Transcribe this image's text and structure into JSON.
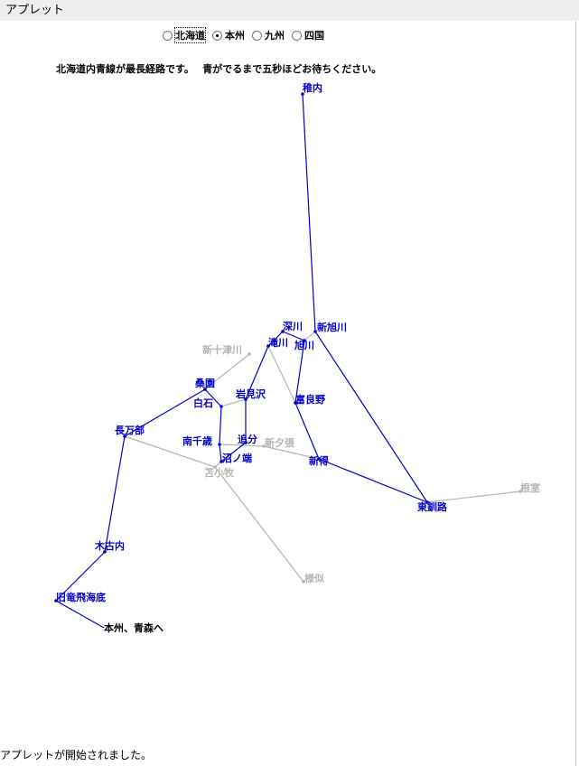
{
  "window": {
    "title": "アプレット"
  },
  "regions": [
    {
      "label": "北海道",
      "selected": false,
      "focused": true
    },
    {
      "label": "本州",
      "selected": true,
      "focused": false
    },
    {
      "label": "九州",
      "selected": false,
      "focused": false
    },
    {
      "label": "四国",
      "selected": false,
      "focused": false
    }
  ],
  "message": "北海道内青線が最長経路です。　 青がでるまで五秒ほどお待ちください。",
  "colors": {
    "route": "#0000cc",
    "other": "#b4b4b4",
    "terminal": "#000000"
  },
  "stations": {
    "wakkanai": {
      "name": "稚内",
      "onRoute": true
    },
    "shinasahikawa": {
      "name": "新旭川",
      "onRoute": true
    },
    "fukagawa": {
      "name": "深川",
      "onRoute": true
    },
    "asahikawa": {
      "name": "旭川",
      "onRoute": true
    },
    "takikawa": {
      "name": "滝川",
      "onRoute": true
    },
    "shintotsukawa": {
      "name": "新十津川",
      "onRoute": false
    },
    "soen": {
      "name": "桑園",
      "onRoute": true
    },
    "shiroishi": {
      "name": "白石",
      "onRoute": true
    },
    "iwamizawa": {
      "name": "岩見沢",
      "onRoute": true
    },
    "furano": {
      "name": "富良野",
      "onRoute": true
    },
    "minamichitose": {
      "name": "南千歳",
      "onRoute": true
    },
    "oiwake": {
      "name": "追分",
      "onRoute": true
    },
    "shinyubari": {
      "name": "新夕張",
      "onRoute": false
    },
    "numanohata": {
      "name": "沼ノ端",
      "onRoute": true
    },
    "tomakomai": {
      "name": "苫小牧",
      "onRoute": false
    },
    "shintoku": {
      "name": "新得",
      "onRoute": true
    },
    "oshamambe": {
      "name": "長万部",
      "onRoute": true
    },
    "kikonai": {
      "name": "木古内",
      "onRoute": true
    },
    "tappi": {
      "name": "旧竜飛海底",
      "onRoute": true
    },
    "honshu": {
      "name": "本州、青森へ",
      "onRoute": true
    },
    "higashikushiro": {
      "name": "東釧路",
      "onRoute": true
    },
    "nemuro": {
      "name": "根室",
      "onRoute": false
    },
    "samani": {
      "name": "様似",
      "onRoute": false
    }
  },
  "status": "アプレットが開始されました。"
}
